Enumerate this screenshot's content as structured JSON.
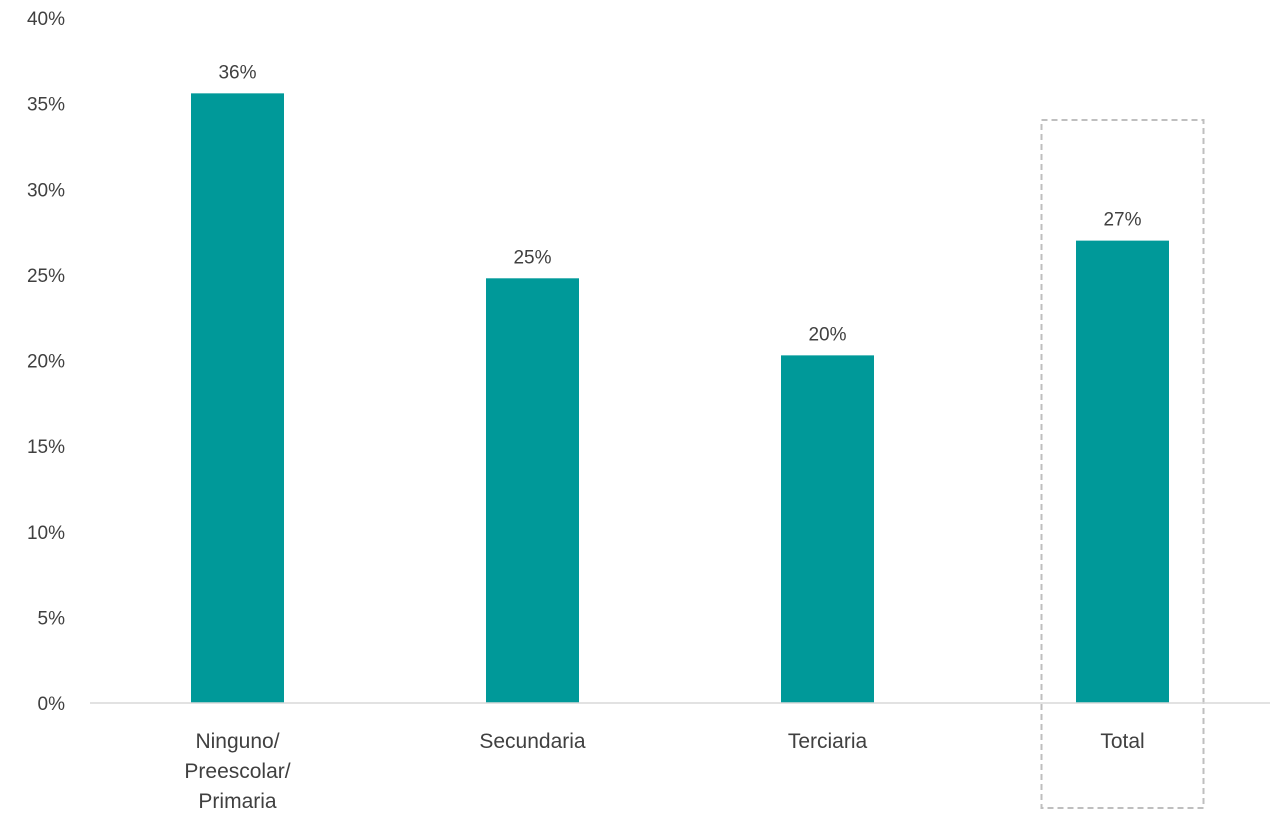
{
  "chart_data": {
    "type": "bar",
    "categories": [
      [
        "Ninguno/",
        "Preescolar/",
        "Primaria"
      ],
      [
        "Secundaria"
      ],
      [
        "Terciaria"
      ],
      [
        "Total"
      ]
    ],
    "values": [
      35.6,
      24.8,
      20.3,
      27.0
    ],
    "data_labels": [
      "36%",
      "25%",
      "20%",
      "27%"
    ],
    "y_ticks": [
      0,
      5,
      10,
      15,
      20,
      25,
      30,
      35,
      40
    ],
    "y_tick_labels": [
      "0%",
      "5%",
      "10%",
      "15%",
      "20%",
      "25%",
      "30%",
      "35%",
      "40%"
    ],
    "ylim": [
      0,
      40
    ],
    "grid": false,
    "highlighted_category": "Total",
    "highlight_style": "dashed-box"
  },
  "colors": {
    "bar": "#009999",
    "axis": "#d9d9d9",
    "highlight_box": "#bfbfbf",
    "text": "#404040"
  }
}
